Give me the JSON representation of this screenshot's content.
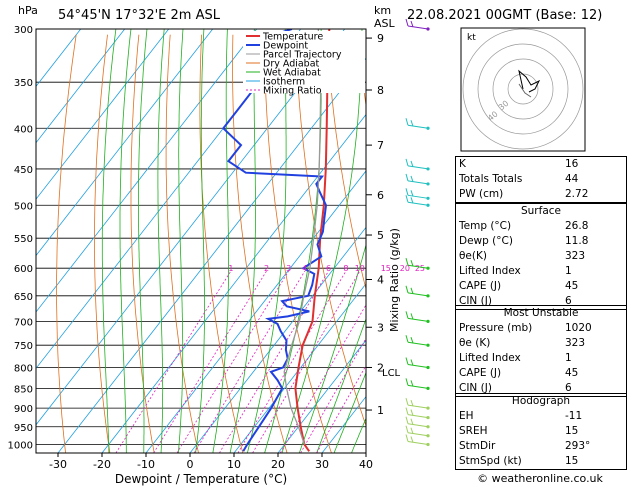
{
  "header": {
    "unit_left": "hPa",
    "location": "54°45'N  17°32'E  2m  ASL",
    "unit_right_1": "km",
    "unit_right_2": "ASL",
    "datetime": "22.08.2021  00GMT  (Base: 12)"
  },
  "legend": [
    "Temperature",
    "Dewpoint",
    "Parcel Trajectory",
    "Dry Adiabat",
    "Wet Adiabat",
    "Isotherm",
    "Mixing Ratio"
  ],
  "colors": {
    "temperature": "#e03030",
    "dewpoint": "#2040e0",
    "parcel": "#999999",
    "dry_adiabat": "#e07020",
    "wet_adiabat": "#20b020",
    "isotherm": "#20a0e0",
    "mixing_ratio": "#e020c0",
    "wind": "#20c0c0"
  },
  "chart_data": {
    "type": "line",
    "xlabel": "Dewpoint / Temperature (°C)",
    "ylabel": "Mixing Ratio (g/kg)",
    "xlim": [
      -35,
      40
    ],
    "x_ticks": [
      -30,
      -20,
      -10,
      0,
      10,
      20,
      30,
      40
    ],
    "pressure_levels": [
      300,
      350,
      400,
      450,
      500,
      550,
      600,
      650,
      700,
      750,
      800,
      850,
      900,
      950,
      1000
    ],
    "km_ticks": [
      {
        "label": "9",
        "p": 308
      },
      {
        "label": "8",
        "p": 358
      },
      {
        "label": "7",
        "p": 420
      },
      {
        "label": "6",
        "p": 485
      },
      {
        "label": "5",
        "p": 545
      },
      {
        "label": "4",
        "p": 620
      },
      {
        "label": "3",
        "p": 712
      },
      {
        "label": "2",
        "p": 800
      },
      {
        "label": "1",
        "p": 905
      }
    ],
    "lcl_label": "LCL",
    "lcl_p": 810,
    "mixing_ratio_labels": [
      "1",
      "2",
      "3",
      "4",
      "6",
      "8",
      "10",
      "15",
      "20",
      "25"
    ],
    "series": [
      {
        "name": "Temperature",
        "points": [
          [
            1020,
            26.8
          ],
          [
            1000,
            24.5
          ],
          [
            950,
            20.5
          ],
          [
            900,
            16.5
          ],
          [
            850,
            12.5
          ],
          [
            800,
            9.5
          ],
          [
            750,
            6.5
          ],
          [
            700,
            4.5
          ],
          [
            650,
            0.5
          ],
          [
            600,
            -3.5
          ],
          [
            550,
            -8.5
          ],
          [
            500,
            -13.5
          ],
          [
            450,
            -19.5
          ],
          [
            400,
            -26.5
          ],
          [
            350,
            -34.5
          ],
          [
            300,
            -43.5
          ]
        ]
      },
      {
        "name": "Dewpoint",
        "points": [
          [
            1020,
            11.8
          ],
          [
            1000,
            11.5
          ],
          [
            950,
            11
          ],
          [
            900,
            10.5
          ],
          [
            850,
            9.5
          ],
          [
            830,
            7
          ],
          [
            810,
            4
          ],
          [
            800,
            6
          ],
          [
            780,
            5.5
          ],
          [
            760,
            3.5
          ],
          [
            740,
            2
          ],
          [
            720,
            -1
          ],
          [
            705,
            -3
          ],
          [
            695,
            -6
          ],
          [
            690,
            -2
          ],
          [
            680,
            2
          ],
          [
            670,
            -4
          ],
          [
            660,
            -6
          ],
          [
            650,
            -1
          ],
          [
            630,
            -2
          ],
          [
            610,
            -3.5
          ],
          [
            600,
            -7
          ],
          [
            580,
            -5
          ],
          [
            560,
            -8
          ],
          [
            540,
            -9
          ],
          [
            520,
            -11
          ],
          [
            500,
            -13
          ],
          [
            480,
            -17
          ],
          [
            470,
            -19
          ],
          [
            460,
            -19
          ],
          [
            455,
            -37
          ],
          [
            440,
            -43
          ],
          [
            420,
            -43
          ],
          [
            400,
            -50
          ],
          [
            380,
            -50
          ],
          [
            360,
            -50
          ],
          [
            340,
            -49
          ],
          [
            320,
            -43
          ],
          [
            315,
            -55
          ],
          [
            310,
            -48
          ],
          [
            305,
            -55
          ],
          [
            300,
            -52
          ]
        ]
      },
      {
        "name": "Parcel Trajectory",
        "points": [
          [
            1000,
            24.5
          ],
          [
            950,
            20
          ],
          [
            900,
            15
          ],
          [
            850,
            10.5
          ],
          [
            810,
            7
          ],
          [
            750,
            4
          ],
          [
            700,
            1.5
          ],
          [
            650,
            -2
          ],
          [
            600,
            -5.5
          ],
          [
            550,
            -10
          ],
          [
            500,
            -15
          ],
          [
            450,
            -21
          ],
          [
            400,
            -28
          ],
          [
            350,
            -36
          ],
          [
            300,
            -46
          ]
        ]
      }
    ],
    "wind_barbs_p": [
      300,
      400,
      450,
      470,
      490,
      500,
      600,
      650,
      700,
      750,
      800,
      850,
      900,
      925,
      950,
      975,
      1000
    ],
    "hodograph": {
      "label": "kt",
      "ring_labels": [
        "40",
        "30"
      ]
    }
  },
  "indices": {
    "rows": [
      [
        "K",
        "16"
      ],
      [
        "Totals Totals",
        "44"
      ],
      [
        "PW (cm)",
        "2.72"
      ]
    ]
  },
  "surface": {
    "title": "Surface",
    "rows": [
      [
        "Temp (°C)",
        "26.8"
      ],
      [
        "Dewp (°C)",
        "11.8"
      ],
      [
        "θe(K)",
        "323"
      ],
      [
        "Lifted Index",
        "1"
      ],
      [
        "CAPE (J)",
        "45"
      ],
      [
        "CIN (J)",
        "6"
      ]
    ]
  },
  "most_unstable": {
    "title": "Most Unstable",
    "rows": [
      [
        "Pressure (mb)",
        "1020"
      ],
      [
        "θe (K)",
        "323"
      ],
      [
        "Lifted Index",
        "1"
      ],
      [
        "CAPE (J)",
        "45"
      ],
      [
        "CIN (J)",
        "6"
      ]
    ]
  },
  "hodograph_table": {
    "title": "Hodograph",
    "rows": [
      [
        "EH",
        "-11"
      ],
      [
        "SREH",
        "15"
      ],
      [
        "StmDir",
        "293°"
      ],
      [
        "StmSpd (kt)",
        "15"
      ]
    ]
  },
  "footer": "© weatheronline.co.uk"
}
